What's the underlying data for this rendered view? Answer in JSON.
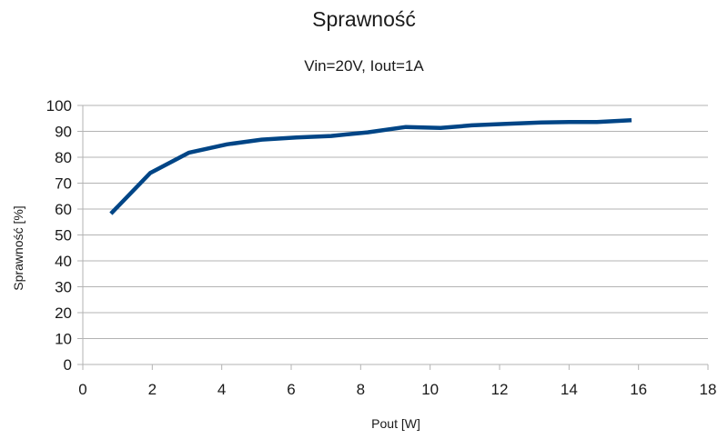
{
  "chart_data": {
    "type": "line",
    "title": "Sprawność",
    "subtitle": "Vin=20V, Iout=1A",
    "xlabel": "Pout [W]",
    "ylabel": "Sprawność [%]",
    "xlim": [
      0,
      18
    ],
    "ylim": [
      0,
      100
    ],
    "xticks": [
      0,
      2,
      4,
      6,
      8,
      10,
      12,
      14,
      16,
      18
    ],
    "yticks": [
      0,
      10,
      20,
      30,
      40,
      50,
      60,
      70,
      80,
      90,
      100
    ],
    "grid": {
      "horizontal": true,
      "vertical": false
    },
    "legend": null,
    "series": [
      {
        "name": "Sprawność",
        "color": "#004586",
        "x": [
          0.81,
          1.94,
          3.06,
          4.15,
          5.15,
          6.15,
          7.15,
          8.2,
          9.3,
          10.3,
          11.2,
          12.2,
          13.2,
          14.0,
          14.8,
          15.8
        ],
        "y": [
          58.2,
          73.9,
          81.8,
          85.0,
          86.8,
          87.6,
          88.2,
          89.6,
          91.7,
          91.3,
          92.3,
          92.9,
          93.4,
          93.6,
          93.6,
          94.3
        ]
      }
    ]
  }
}
